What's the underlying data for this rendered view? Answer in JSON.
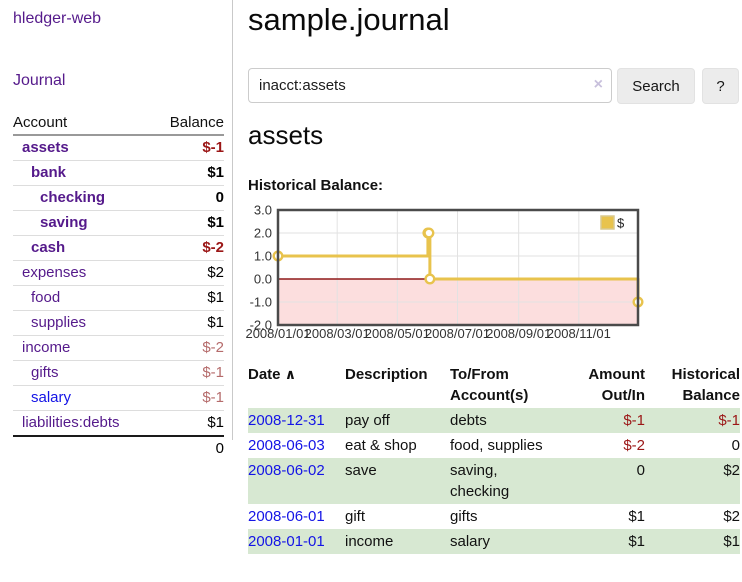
{
  "colors": {
    "link_purple": "#551a8b",
    "link_blue": "#1414e6",
    "negative_strong": "#9b1616",
    "negative_soft": "#b56b6b",
    "row_stripe_green": "#d7e8d2",
    "button_gray": "#ececec"
  },
  "sidebar": {
    "brand": "hledger-web",
    "journal_link": "Journal",
    "accounts": {
      "headers": {
        "account": "Account",
        "balance": "Balance"
      },
      "rows": [
        {
          "name": "assets",
          "balance": "$-1",
          "level": 1,
          "bold": true,
          "balance_class": "neg-strong",
          "link": "purple"
        },
        {
          "name": "bank",
          "balance": "$1",
          "level": 2,
          "bold": true,
          "balance_class": "pos",
          "link": "purple"
        },
        {
          "name": "checking",
          "balance": "0",
          "level": 3,
          "bold": true,
          "balance_class": "pos",
          "link": "purple"
        },
        {
          "name": "saving",
          "balance": "$1",
          "level": 3,
          "bold": true,
          "balance_class": "pos",
          "link": "purple"
        },
        {
          "name": "cash",
          "balance": "$-2",
          "level": 2,
          "bold": true,
          "balance_class": "neg-strong",
          "link": "purple"
        },
        {
          "name": "expenses",
          "balance": "$2",
          "level": 1,
          "bold": false,
          "balance_class": "pos",
          "link": "purple"
        },
        {
          "name": "food",
          "balance": "$1",
          "level": 2,
          "bold": false,
          "balance_class": "pos",
          "link": "purple"
        },
        {
          "name": "supplies",
          "balance": "$1",
          "level": 2,
          "bold": false,
          "balance_class": "pos",
          "link": "purple"
        },
        {
          "name": "income",
          "balance": "$-2",
          "level": 1,
          "bold": false,
          "balance_class": "neg-soft",
          "link": "purple"
        },
        {
          "name": "gifts",
          "balance": "$-1",
          "level": 2,
          "bold": false,
          "balance_class": "neg-soft",
          "link": "purple"
        },
        {
          "name": "salary",
          "balance": "$-1",
          "level": 2,
          "bold": false,
          "balance_class": "neg-soft",
          "link": "blue"
        },
        {
          "name": "liabilities:debts",
          "balance": "$1",
          "level": 1,
          "bold": false,
          "balance_class": "pos",
          "link": "purple"
        }
      ],
      "total": "0"
    }
  },
  "main": {
    "title": "sample.journal",
    "search": {
      "value": "inacct:assets",
      "clear_icon": "×",
      "button_label": "Search",
      "help_label": "?"
    },
    "account_heading": "assets",
    "chart_label": "Historical Balance:",
    "register": {
      "sort_icon": "∧",
      "headers": {
        "date": "Date",
        "description": "Description",
        "accounts": "To/From Account(s)",
        "amount": "Amount Out/In",
        "balance": "Historical Balance"
      },
      "rows": [
        {
          "date": "2008-12-31",
          "description": "pay off",
          "accounts": "debts",
          "amount": "$-1",
          "amount_class": "neg",
          "balance": "$-1",
          "balance_class": "neg"
        },
        {
          "date": "2008-06-03",
          "description": "eat & shop",
          "accounts": "food, supplies",
          "amount": "$-2",
          "amount_class": "neg",
          "balance": "0",
          "balance_class": "plain"
        },
        {
          "date": "2008-06-02",
          "description": "save",
          "accounts": "saving, checking",
          "amount": "0",
          "amount_class": "plain",
          "balance": "$2",
          "balance_class": "plain"
        },
        {
          "date": "2008-06-01",
          "description": "gift",
          "accounts": "gifts",
          "amount": "$1",
          "amount_class": "plain",
          "balance": "$2",
          "balance_class": "plain"
        },
        {
          "date": "2008-01-01",
          "description": "income",
          "accounts": "salary",
          "amount": "$1",
          "amount_class": "plain",
          "balance": "$1",
          "balance_class": "plain"
        }
      ]
    }
  },
  "chart_data": {
    "type": "line",
    "title": "Historical Balance:",
    "xlabel": "",
    "ylabel": "",
    "x_ticks": [
      "2008/01/01",
      "2008/03/01",
      "2008/05/01",
      "2008/07/01",
      "2008/09/01",
      "2008/11/01"
    ],
    "y_ticks": [
      "3.0",
      "2.0",
      "1.0",
      "0.0",
      "-1.0",
      "-2.0"
    ],
    "xlim": [
      "2008/01/01",
      "2008/12/31"
    ],
    "ylim": [
      -2,
      3
    ],
    "grid": true,
    "legend_position": "top-right",
    "series": [
      {
        "name": "$",
        "style": "step-line",
        "color": "#e8c34d",
        "marker": "open-circle",
        "points": [
          [
            "2008/01/01",
            1
          ],
          [
            "2008/06/01",
            2
          ],
          [
            "2008/06/02",
            2
          ],
          [
            "2008/06/03",
            0
          ],
          [
            "2008/12/31",
            -1
          ]
        ]
      }
    ],
    "negative_region_color": "#fcdede",
    "zero_line_color": "#8f1a1a",
    "grid_color": "#e2e2e2",
    "border_color": "#4a4a4a",
    "tick_label_color": "#333333"
  }
}
